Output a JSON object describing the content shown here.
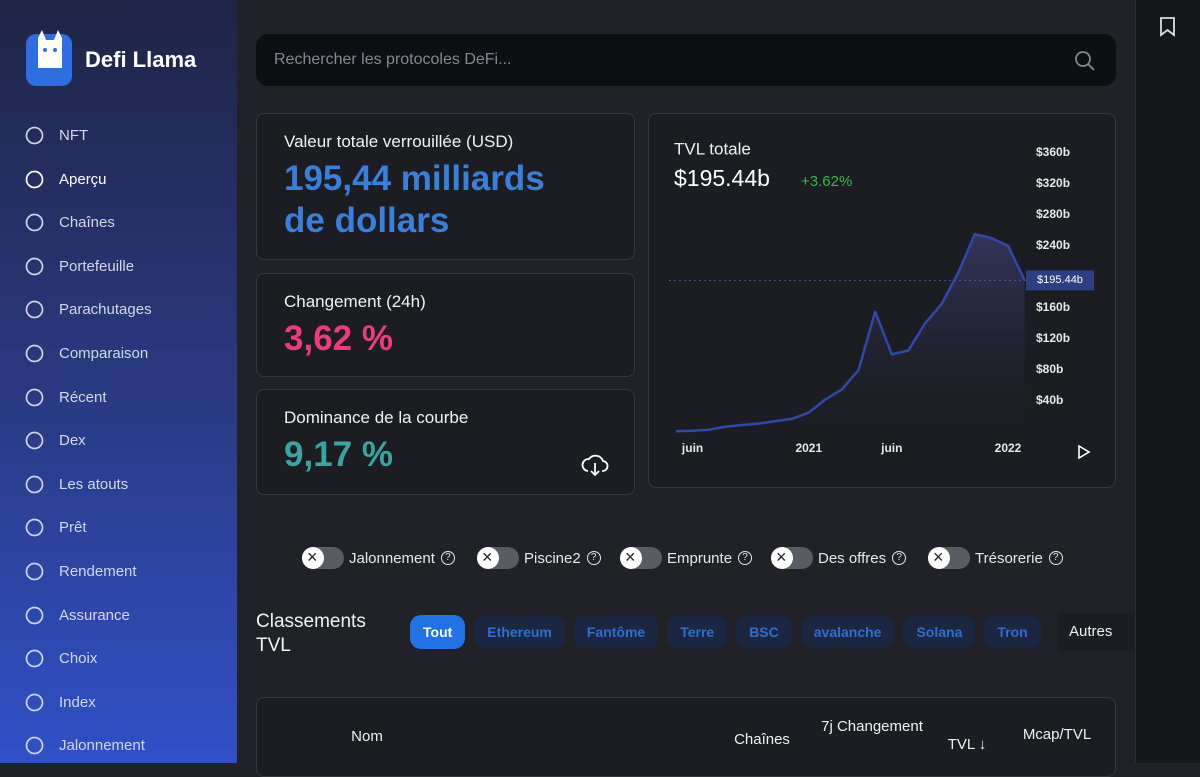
{
  "sidebar": {
    "brand": "Defi Llama",
    "items": [
      "NFT",
      "Aperçu",
      "Chaînes",
      "Portefeuille",
      "Parachutages",
      "Comparaison",
      "Récent",
      "Dex",
      "Les atouts",
      "Prêt",
      "Rendement",
      "Assurance",
      "Choix",
      "Index",
      "Jalonnement"
    ]
  },
  "search": {
    "placeholder": "Rechercher les protocoles DeFi..."
  },
  "stats": [
    {
      "label": "Valeur totale verrouillée (USD)",
      "value": "195,44 milliards de dollars"
    },
    {
      "label": "Changement (24h)",
      "value": "3,62 %"
    },
    {
      "label": "Dominance de la courbe",
      "value": "9,17 %"
    }
  ],
  "chart_data": {
    "type": "line",
    "title": "TVL totale",
    "headline": "$195.44b",
    "change": "+3.62%",
    "categories": [
      null,
      "juin",
      null,
      null,
      null,
      null,
      null,
      null,
      "2021",
      null,
      null,
      null,
      null,
      "juin",
      null,
      null,
      null,
      null,
      null,
      null,
      "2022",
      null
    ],
    "values": [
      1,
      1.5,
      3,
      7,
      9,
      11,
      14,
      17,
      25,
      42,
      55,
      80,
      155,
      100,
      105,
      140,
      165,
      205,
      255,
      250,
      240,
      195.44
    ],
    "color": "#3049a8",
    "ylim": [
      0,
      375
    ],
    "yticks": [
      {
        "value": 40,
        "label": "$40b"
      },
      {
        "value": 80,
        "label": "$80b"
      },
      {
        "value": 120,
        "label": "$120b"
      },
      {
        "value": 160,
        "label": "$160b"
      },
      {
        "value": 240,
        "label": "$240b"
      },
      {
        "value": 280,
        "label": "$280b"
      },
      {
        "value": 320,
        "label": "$320b"
      },
      {
        "value": 360,
        "label": "$360b"
      }
    ],
    "current": 195.44,
    "current_label": "$195.44b"
  },
  "toggles": [
    "Jalonnement",
    "Piscine2",
    "Emprunte",
    "Des offres",
    "Trésorerie"
  ],
  "rankings": {
    "title": "Classements TVL",
    "tabs": [
      "Tout",
      "Ethereum",
      "Fantôme",
      "Terre",
      "BSC",
      "avalanche",
      "Solana",
      "Tron"
    ],
    "more": "Autres"
  },
  "table": {
    "columns": [
      "Nom",
      "Chaînes",
      "7j Changement",
      "TVL ↓",
      "Mcap/TVL"
    ]
  }
}
